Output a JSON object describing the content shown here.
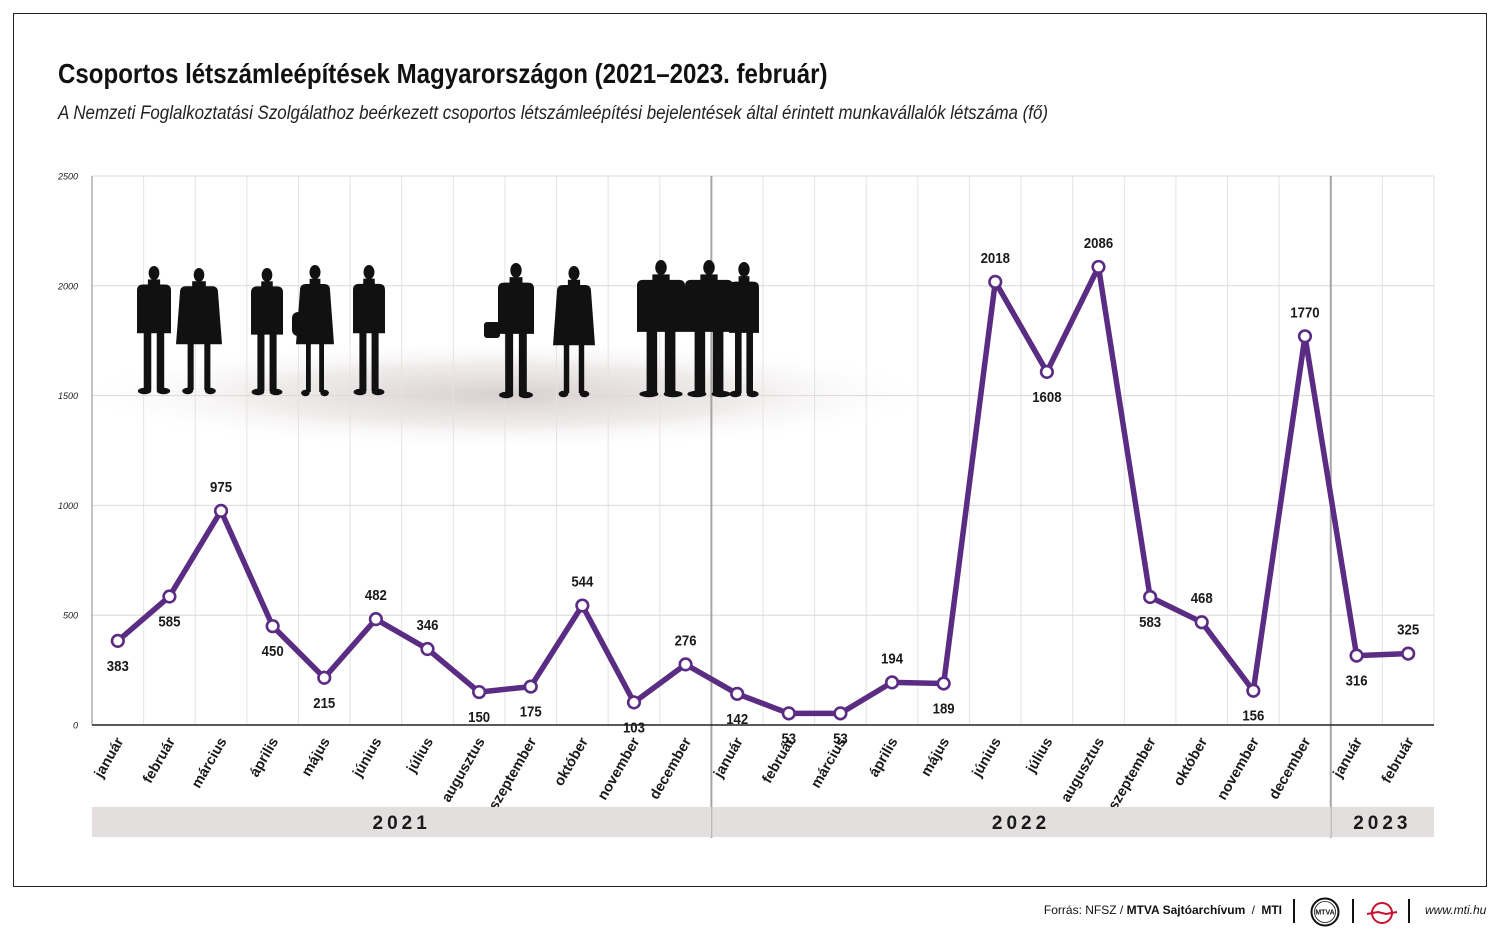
{
  "title": "Csoportos létszámleépítések Magyarországon (2021–2023. február)",
  "subtitle": "A Nemzeti Foglalkoztatási Szolgálathoz beérkezett csoportos létszámleépítési bejelentések által érintett munkavállalók létszáma (fő)",
  "chart_data": {
    "type": "line",
    "title": "Csoportos létszámleépítések Magyarországon (2021–2023. február)",
    "ylim": [
      0,
      2500
    ],
    "yticks": [
      "0",
      "500",
      "1000",
      "1500",
      "2000",
      "2500"
    ],
    "grid": true,
    "line_color": "#5b2c83",
    "categories": [
      "január",
      "február",
      "március",
      "április",
      "május",
      "június",
      "július",
      "augusztus",
      "szeptember",
      "október",
      "november",
      "december",
      "január",
      "február",
      "március",
      "április",
      "május",
      "június",
      "július",
      "augusztus",
      "szeptember",
      "október",
      "november",
      "december",
      "január",
      "február"
    ],
    "values": [
      383,
      585,
      975,
      450,
      215,
      482,
      346,
      150,
      175,
      544,
      103,
      276,
      142,
      53,
      53,
      194,
      189,
      2018,
      1608,
      2086,
      583,
      468,
      156,
      1770,
      316,
      325
    ],
    "years": [
      {
        "label": "2021",
        "months": 12
      },
      {
        "label": "2022",
        "months": 12
      },
      {
        "label": "2023",
        "months": 2
      }
    ]
  },
  "footer": {
    "source_prefix": "Forrás: NFSZ /",
    "source_org": "MTVA Sajtóarchívum",
    "source_mti": "MTI",
    "mtva_logo_text": "MTVA",
    "site": "www.mti.hu"
  }
}
